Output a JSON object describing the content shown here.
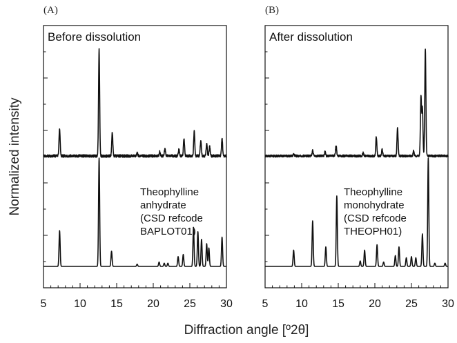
{
  "chart_data": {
    "type": "line",
    "ylabel": "Normalized intensity",
    "xlabel": "Diffraction angle [º2θ]",
    "xlim": [
      5,
      30
    ],
    "x_ticks": [
      5,
      10,
      15,
      20,
      25,
      30
    ],
    "grid": false,
    "panels": [
      {
        "id": "A",
        "letter": "(A)",
        "title": "Before dissolution",
        "annotation": [
          "Theophylline",
          "anhydrate",
          "(CSD refcode",
          "BAPLOT01)"
        ],
        "series": [
          {
            "role": "experimental",
            "baseline": 0.0,
            "noise": 0.012,
            "peaks": [
              [
                7.2,
                0.26
              ],
              [
                12.6,
                1.0
              ],
              [
                14.4,
                0.22
              ],
              [
                17.8,
                0.03
              ],
              [
                20.9,
                0.04
              ],
              [
                21.6,
                0.07
              ],
              [
                23.5,
                0.06
              ],
              [
                24.2,
                0.16
              ],
              [
                25.6,
                0.23
              ],
              [
                26.5,
                0.15
              ],
              [
                27.3,
                0.12
              ],
              [
                27.7,
                0.09
              ],
              [
                29.4,
                0.16
              ]
            ]
          },
          {
            "role": "reference",
            "baseline": 0.0,
            "noise": 0.0,
            "peaks": [
              [
                7.2,
                0.33
              ],
              [
                12.6,
                1.0
              ],
              [
                14.3,
                0.14
              ],
              [
                17.8,
                0.02
              ],
              [
                20.8,
                0.04
              ],
              [
                21.5,
                0.03
              ],
              [
                22.0,
                0.03
              ],
              [
                23.4,
                0.09
              ],
              [
                24.1,
                0.11
              ],
              [
                25.5,
                0.36
              ],
              [
                26.1,
                0.32
              ],
              [
                26.6,
                0.25
              ],
              [
                27.3,
                0.21
              ],
              [
                27.6,
                0.17
              ],
              [
                29.4,
                0.27
              ]
            ]
          }
        ]
      },
      {
        "id": "B",
        "letter": "(B)",
        "title": "After dissolution",
        "annotation": [
          "Theophylline",
          "monohydrate",
          "(CSD refcode",
          "THEOPH01)"
        ],
        "series": [
          {
            "role": "experimental",
            "baseline": 0.0,
            "noise": 0.01,
            "peaks": [
              [
                8.9,
                0.02
              ],
              [
                11.5,
                0.05
              ],
              [
                13.2,
                0.04
              ],
              [
                14.7,
                0.1
              ],
              [
                18.4,
                0.03
              ],
              [
                20.2,
                0.18
              ],
              [
                21.0,
                0.06
              ],
              [
                23.1,
                0.26
              ],
              [
                25.3,
                0.05
              ],
              [
                26.3,
                0.55
              ],
              [
                26.5,
                0.45
              ],
              [
                26.9,
                1.0
              ]
            ]
          },
          {
            "role": "reference",
            "baseline": 0.0,
            "noise": 0.0,
            "peaks": [
              [
                8.9,
                0.15
              ],
              [
                11.5,
                0.42
              ],
              [
                13.3,
                0.18
              ],
              [
                14.8,
                0.65
              ],
              [
                18.0,
                0.05
              ],
              [
                18.6,
                0.15
              ],
              [
                20.3,
                0.2
              ],
              [
                21.2,
                0.04
              ],
              [
                22.8,
                0.1
              ],
              [
                23.3,
                0.18
              ],
              [
                24.3,
                0.08
              ],
              [
                25.0,
                0.09
              ],
              [
                25.6,
                0.08
              ],
              [
                26.5,
                0.3
              ],
              [
                27.3,
                1.0
              ],
              [
                28.2,
                0.03
              ],
              [
                29.6,
                0.03
              ]
            ]
          }
        ]
      }
    ]
  }
}
